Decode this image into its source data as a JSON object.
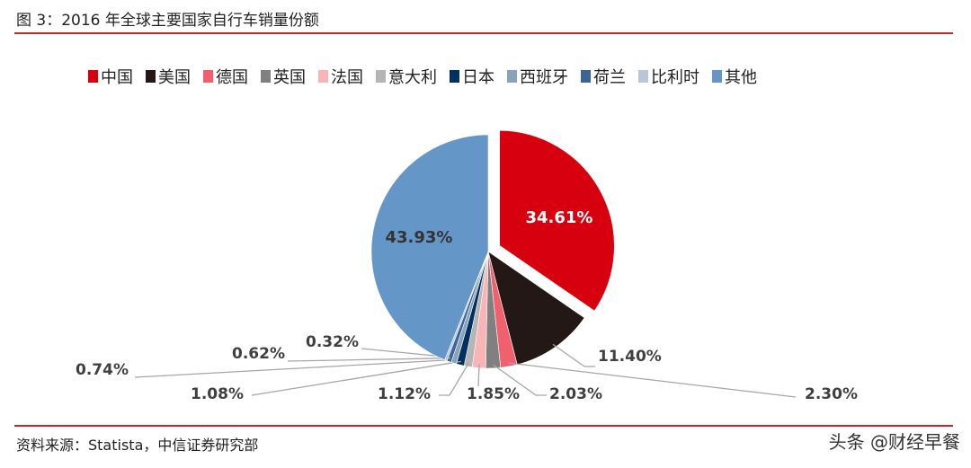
{
  "title": "图 3：2016 年全球主要国家自行车销量份额",
  "source": "资料来源：Statista，中信证券研究部",
  "watermark": "头条 @财经早餐",
  "chart_data": {
    "type": "pie",
    "title": "图 3：2016 年全球主要国家自行车销量份额",
    "legend_position": "top",
    "exploded": [
      "中国"
    ],
    "slices": [
      {
        "name": "中国",
        "value": 34.61,
        "label": "34.61%",
        "color": "#d7000f"
      },
      {
        "name": "美国",
        "value": 11.4,
        "label": "11.40%",
        "color": "#231815"
      },
      {
        "name": "德国",
        "value": 2.3,
        "label": "2.30%",
        "color": "#f1606f"
      },
      {
        "name": "英国",
        "value": 2.03,
        "label": "2.03%",
        "color": "#808080"
      },
      {
        "name": "法国",
        "value": 1.85,
        "label": "1.85%",
        "color": "#f8b5b8"
      },
      {
        "name": "意大利",
        "value": 1.12,
        "label": "1.12%",
        "color": "#b5b5b6"
      },
      {
        "name": "日本",
        "value": 1.08,
        "label": "1.08%",
        "color": "#00305f"
      },
      {
        "name": "西班牙",
        "value": 0.74,
        "label": "0.74%",
        "color": "#8aa3bd"
      },
      {
        "name": "荷兰",
        "value": 0.62,
        "label": "0.62%",
        "color": "#3a6596"
      },
      {
        "name": "比利时",
        "value": 0.32,
        "label": "0.32%",
        "color": "#b8c6d8"
      },
      {
        "name": "其他",
        "value": 43.93,
        "label": "43.93%",
        "color": "#6596c8"
      }
    ]
  }
}
